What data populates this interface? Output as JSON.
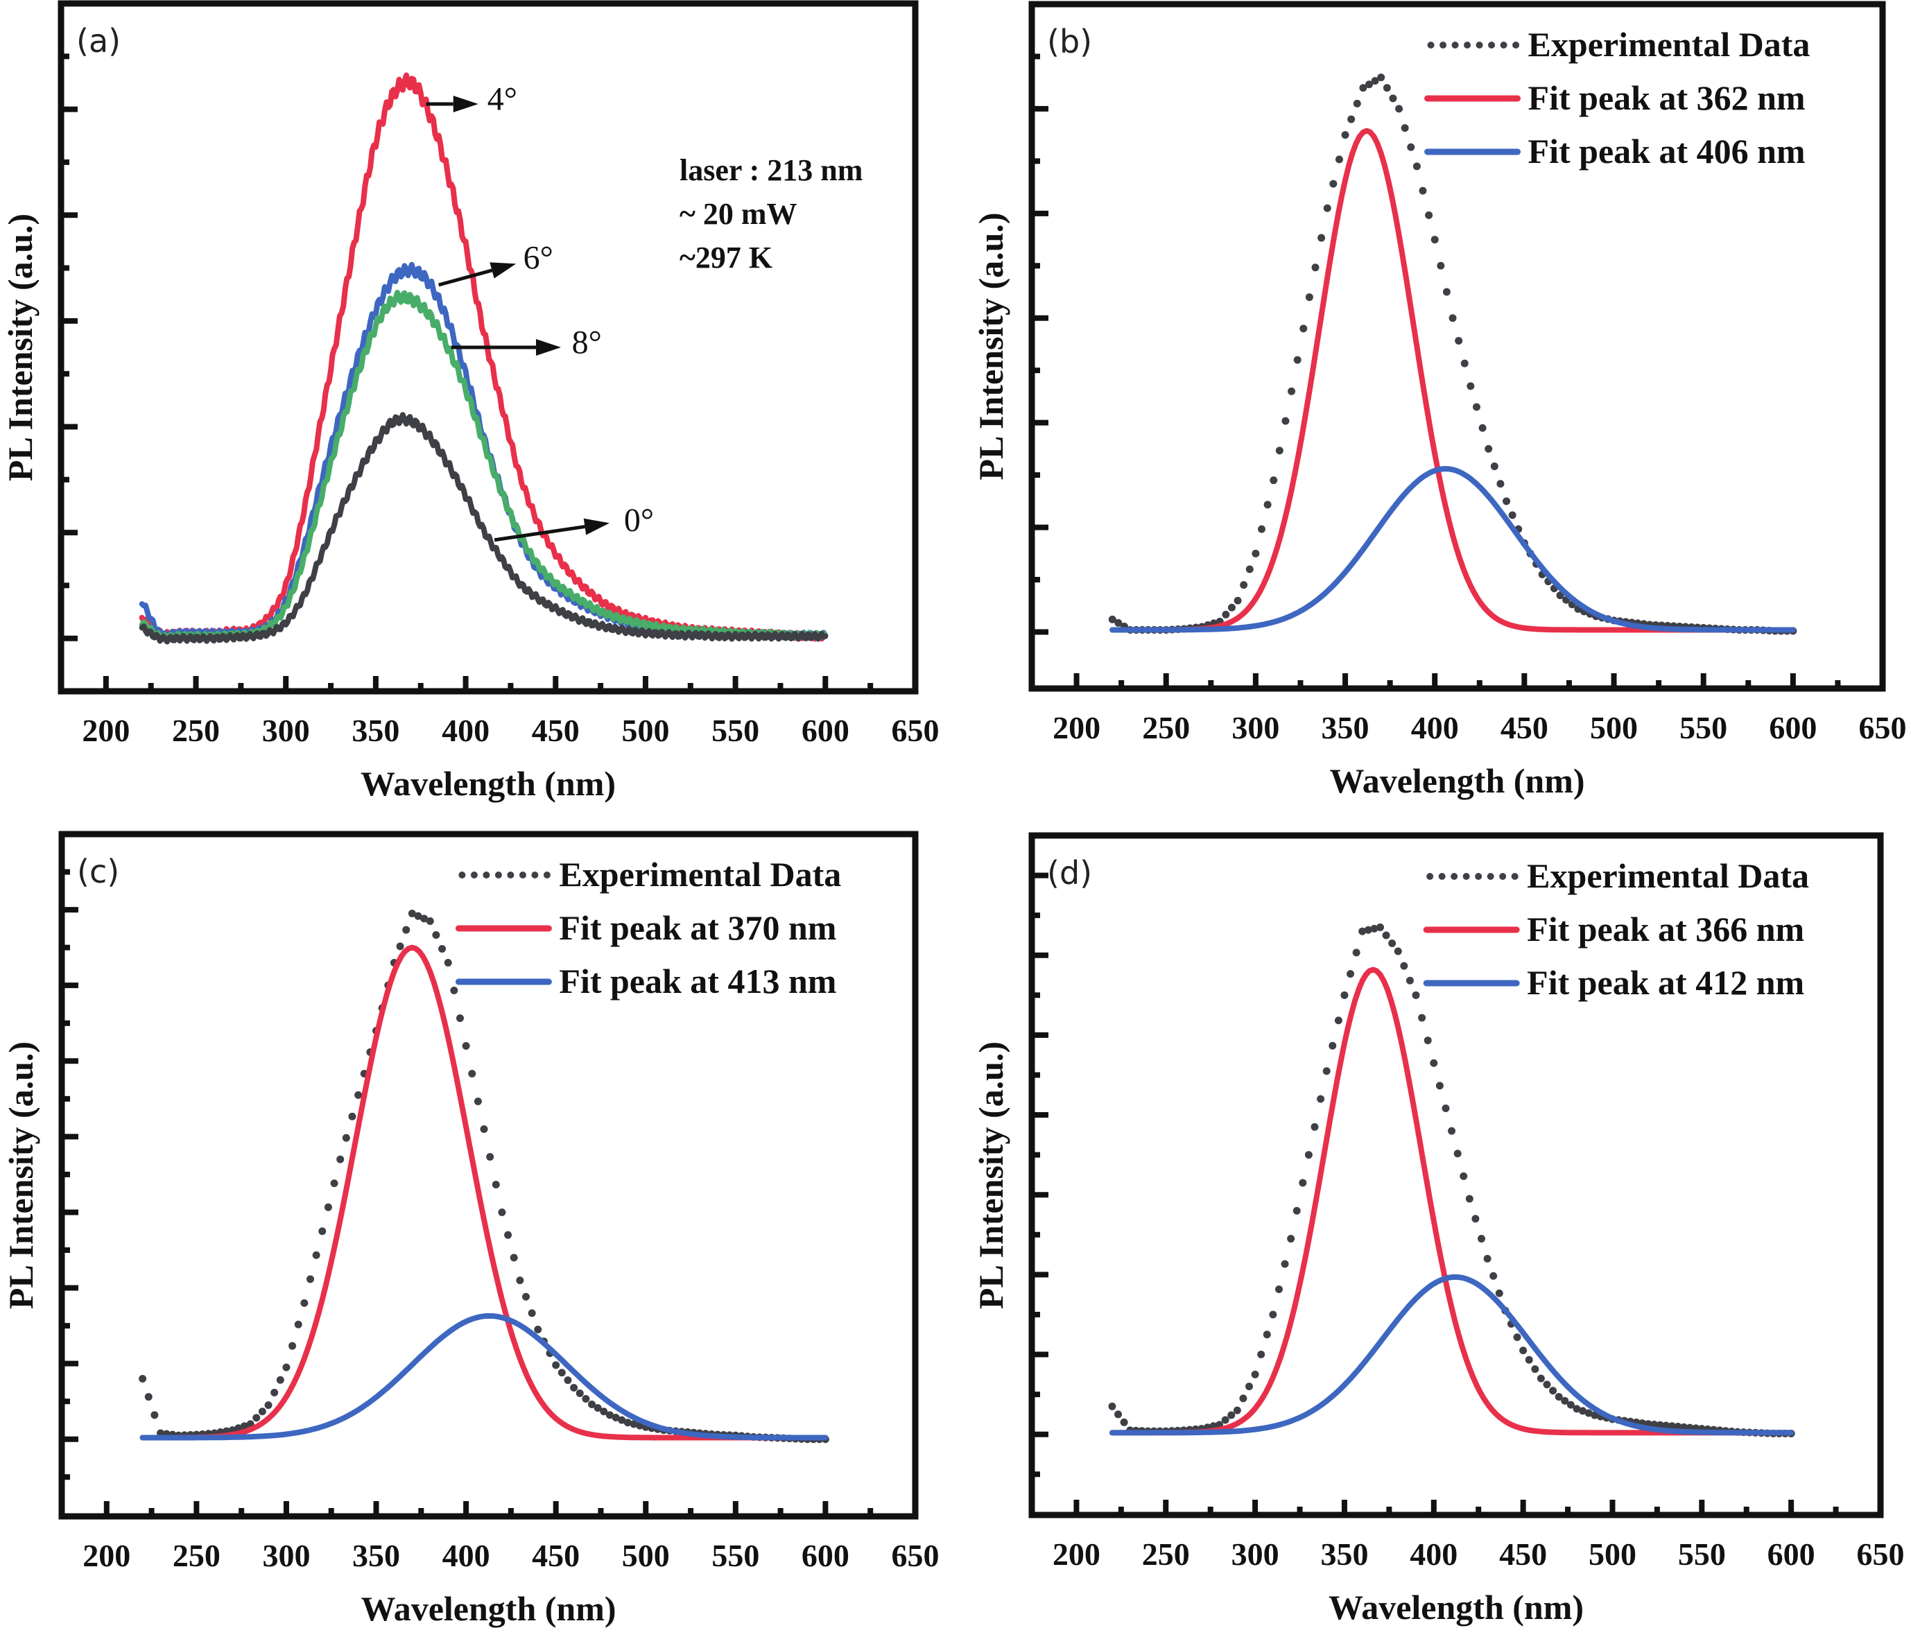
{
  "figure": {
    "panels_count": 4
  },
  "colors": {
    "red": "#e8304a",
    "blue": "#3d67c0",
    "green": "#48ad68",
    "gray": "#3e4046",
    "axis": "#111111"
  },
  "chart_data": [
    {
      "type": "line",
      "panel_label": "(a)",
      "title": "",
      "xlabel": "Wavelength (nm)",
      "ylabel": "PL Intensity (a.u.)",
      "xlim": [
        175,
        650
      ],
      "ylim": [
        -0.5,
        6.0
      ],
      "xticks": [
        200,
        250,
        300,
        350,
        400,
        450,
        500,
        550,
        600,
        650
      ],
      "yticks_labeled": false,
      "grid": false,
      "legend": null,
      "x": [
        220,
        230,
        240,
        250,
        260,
        270,
        280,
        290,
        300,
        310,
        320,
        330,
        340,
        350,
        360,
        370,
        380,
        390,
        400,
        410,
        420,
        430,
        440,
        450,
        460,
        470,
        480,
        490,
        500,
        510,
        520,
        530,
        540,
        550,
        560,
        570,
        580,
        590,
        600
      ],
      "series": [
        {
          "name": "4°",
          "color": "red",
          "style": "line",
          "values": [
            0.2,
            0.05,
            0.05,
            0.05,
            0.05,
            0.07,
            0.08,
            0.2,
            0.5,
            1.2,
            2.1,
            3.0,
            3.9,
            4.7,
            5.15,
            5.25,
            4.95,
            4.4,
            3.7,
            2.9,
            2.2,
            1.55,
            1.1,
            0.8,
            0.58,
            0.42,
            0.3,
            0.22,
            0.17,
            0.13,
            0.1,
            0.08,
            0.07,
            0.06,
            0.05,
            0.04,
            0.03,
            0.02,
            0.02
          ]
        },
        {
          "name": "6°",
          "color": "blue",
          "style": "line",
          "values": [
            0.35,
            0.05,
            0.05,
            0.05,
            0.05,
            0.05,
            0.06,
            0.12,
            0.35,
            0.85,
            1.5,
            2.1,
            2.65,
            3.1,
            3.4,
            3.48,
            3.35,
            3.0,
            2.5,
            1.9,
            1.4,
            0.95,
            0.65,
            0.48,
            0.36,
            0.27,
            0.2,
            0.15,
            0.11,
            0.08,
            0.06,
            0.05,
            0.05,
            0.04,
            0.04,
            0.03,
            0.03,
            0.03,
            0.03
          ]
        },
        {
          "name": "8°",
          "color": "green",
          "style": "line",
          "values": [
            0.15,
            0.02,
            0.02,
            0.02,
            0.02,
            0.03,
            0.04,
            0.1,
            0.3,
            0.75,
            1.35,
            1.95,
            2.5,
            2.95,
            3.2,
            3.2,
            3.05,
            2.75,
            2.35,
            1.85,
            1.38,
            0.98,
            0.7,
            0.52,
            0.4,
            0.3,
            0.22,
            0.17,
            0.13,
            0.1,
            0.08,
            0.07,
            0.06,
            0.05,
            0.04,
            0.04,
            0.03,
            0.03,
            0.03
          ]
        },
        {
          "name": "0°",
          "color": "gray",
          "style": "line",
          "values": [
            0.1,
            0.0,
            0.0,
            0.0,
            0.0,
            0.01,
            0.02,
            0.05,
            0.15,
            0.4,
            0.8,
            1.2,
            1.55,
            1.85,
            2.05,
            2.05,
            1.9,
            1.65,
            1.35,
            1.02,
            0.75,
            0.52,
            0.38,
            0.28,
            0.2,
            0.14,
            0.1,
            0.07,
            0.05,
            0.04,
            0.03,
            0.03,
            0.02,
            0.02,
            0.02,
            0.02,
            0.02,
            0.02,
            0.02
          ]
        }
      ],
      "annotations": {
        "conditions": [
          "laser : 213 nm",
          " ~ 20 mW",
          " ~297 K"
        ],
        "arrows": [
          {
            "label": "4°",
            "series": "4°"
          },
          {
            "label": "6°",
            "series": "6°"
          },
          {
            "label": "8°",
            "series": "8°"
          },
          {
            "label": "0°",
            "series": "0°"
          }
        ]
      }
    },
    {
      "type": "line",
      "panel_label": "(b)",
      "title": "",
      "xlabel": "Wavelength (nm)",
      "ylabel": "PL Intensity (a.u.)",
      "xlim": [
        175,
        650
      ],
      "ylim": [
        -0.54,
        6.0
      ],
      "xticks": [
        200,
        250,
        300,
        350,
        400,
        450,
        500,
        550,
        600,
        650
      ],
      "yticks_labeled": false,
      "grid": false,
      "legend": "top-right",
      "x": [
        220,
        230,
        240,
        250,
        260,
        270,
        280,
        290,
        300,
        310,
        320,
        330,
        340,
        350,
        360,
        370,
        380,
        390,
        400,
        410,
        420,
        430,
        440,
        450,
        460,
        470,
        480,
        490,
        500,
        510,
        520,
        530,
        540,
        550,
        560,
        570,
        580,
        590,
        600
      ],
      "series": [
        {
          "name": "Experimental Data",
          "color": "gray",
          "style": "dotted",
          "values": [
            0.12,
            0.02,
            0.02,
            0.02,
            0.03,
            0.05,
            0.1,
            0.3,
            0.75,
            1.45,
            2.3,
            3.2,
            4.05,
            4.75,
            5.2,
            5.3,
            5.0,
            4.45,
            3.75,
            3.0,
            2.35,
            1.75,
            1.25,
            0.85,
            0.55,
            0.35,
            0.22,
            0.15,
            0.11,
            0.09,
            0.07,
            0.06,
            0.05,
            0.04,
            0.03,
            0.02,
            0.02,
            0.01,
            0.01
          ]
        },
        {
          "name": "Fit peak at 362 nm",
          "color": "red",
          "style": "line",
          "model": "gaussian",
          "center_nm": 362,
          "amplitude": 4.77,
          "fwhm_nm": 62
        },
        {
          "name": "Fit peak at 406 nm",
          "color": "blue",
          "style": "line",
          "model": "gaussian",
          "center_nm": 406,
          "amplitude": 1.54,
          "fwhm_nm": 92
        }
      ]
    },
    {
      "type": "line",
      "panel_label": "(c)",
      "title": "",
      "xlabel": "Wavelength (nm)",
      "ylabel": "PL Intensity (a.u.)",
      "xlim": [
        175,
        650
      ],
      "ylim": [
        -1.02,
        8.0
      ],
      "xticks": [
        200,
        250,
        300,
        350,
        400,
        450,
        500,
        550,
        600,
        650
      ],
      "yticks_labeled": false,
      "grid": false,
      "legend": "top-right",
      "x": [
        220,
        230,
        240,
        250,
        260,
        270,
        280,
        290,
        300,
        310,
        320,
        330,
        340,
        350,
        360,
        370,
        380,
        390,
        400,
        410,
        420,
        430,
        440,
        450,
        460,
        470,
        480,
        490,
        500,
        510,
        520,
        530,
        540,
        550,
        560,
        570,
        580,
        590,
        600
      ],
      "series": [
        {
          "name": "Experimental Data",
          "color": "gray",
          "style": "dotted",
          "values": [
            0.8,
            0.08,
            0.05,
            0.06,
            0.08,
            0.12,
            0.2,
            0.45,
            0.95,
            1.8,
            2.75,
            3.7,
            4.55,
            5.4,
            6.3,
            6.95,
            6.85,
            6.3,
            5.2,
            4.1,
            3.0,
            2.1,
            1.45,
            0.98,
            0.68,
            0.46,
            0.32,
            0.22,
            0.16,
            0.12,
            0.1,
            0.08,
            0.06,
            0.05,
            0.03,
            0.02,
            0.01,
            0.0,
            0.0
          ]
        },
        {
          "name": "Fit peak at 370 nm",
          "color": "red",
          "style": "line",
          "model": "gaussian",
          "center_nm": 370,
          "amplitude": 6.48,
          "fwhm_nm": 74
        },
        {
          "name": "Fit peak at 413 nm",
          "color": "blue",
          "style": "line",
          "model": "gaussian",
          "center_nm": 413,
          "amplitude": 1.61,
          "fwhm_nm": 100
        }
      ]
    },
    {
      "type": "line",
      "panel_label": "(d)",
      "title": "",
      "xlabel": "Wavelength (nm)",
      "ylabel": "PL Intensity (a.u.)",
      "xlim": [
        175,
        650
      ],
      "ylim": [
        -1.01,
        7.5
      ],
      "xticks": [
        200,
        250,
        300,
        350,
        400,
        450,
        500,
        550,
        600,
        650
      ],
      "yticks_labeled": false,
      "grid": false,
      "legend": "top-right",
      "x": [
        220,
        230,
        240,
        250,
        260,
        270,
        280,
        290,
        300,
        310,
        320,
        330,
        340,
        350,
        360,
        370,
        380,
        390,
        400,
        410,
        420,
        430,
        440,
        450,
        460,
        470,
        480,
        490,
        500,
        510,
        520,
        530,
        540,
        550,
        560,
        570,
        580,
        590,
        600
      ],
      "series": [
        {
          "name": "Experimental Data",
          "color": "gray",
          "style": "dotted",
          "values": [
            0.35,
            0.05,
            0.04,
            0.04,
            0.05,
            0.07,
            0.12,
            0.3,
            0.75,
            1.5,
            2.45,
            3.5,
            4.55,
            5.5,
            6.3,
            6.35,
            6.05,
            5.5,
            4.65,
            3.8,
            2.95,
            2.2,
            1.55,
            1.05,
            0.7,
            0.47,
            0.32,
            0.24,
            0.19,
            0.16,
            0.13,
            0.11,
            0.09,
            0.07,
            0.05,
            0.03,
            0.02,
            0.01,
            0.01
          ]
        },
        {
          "name": "Fit peak at 366 nm",
          "color": "red",
          "style": "line",
          "model": "gaussian",
          "center_nm": 366,
          "amplitude": 5.8,
          "fwhm_nm": 64
        },
        {
          "name": "Fit peak at 412 nm",
          "color": "blue",
          "style": "line",
          "model": "gaussian",
          "center_nm": 412,
          "amplitude": 1.95,
          "fwhm_nm": 95
        }
      ]
    }
  ]
}
